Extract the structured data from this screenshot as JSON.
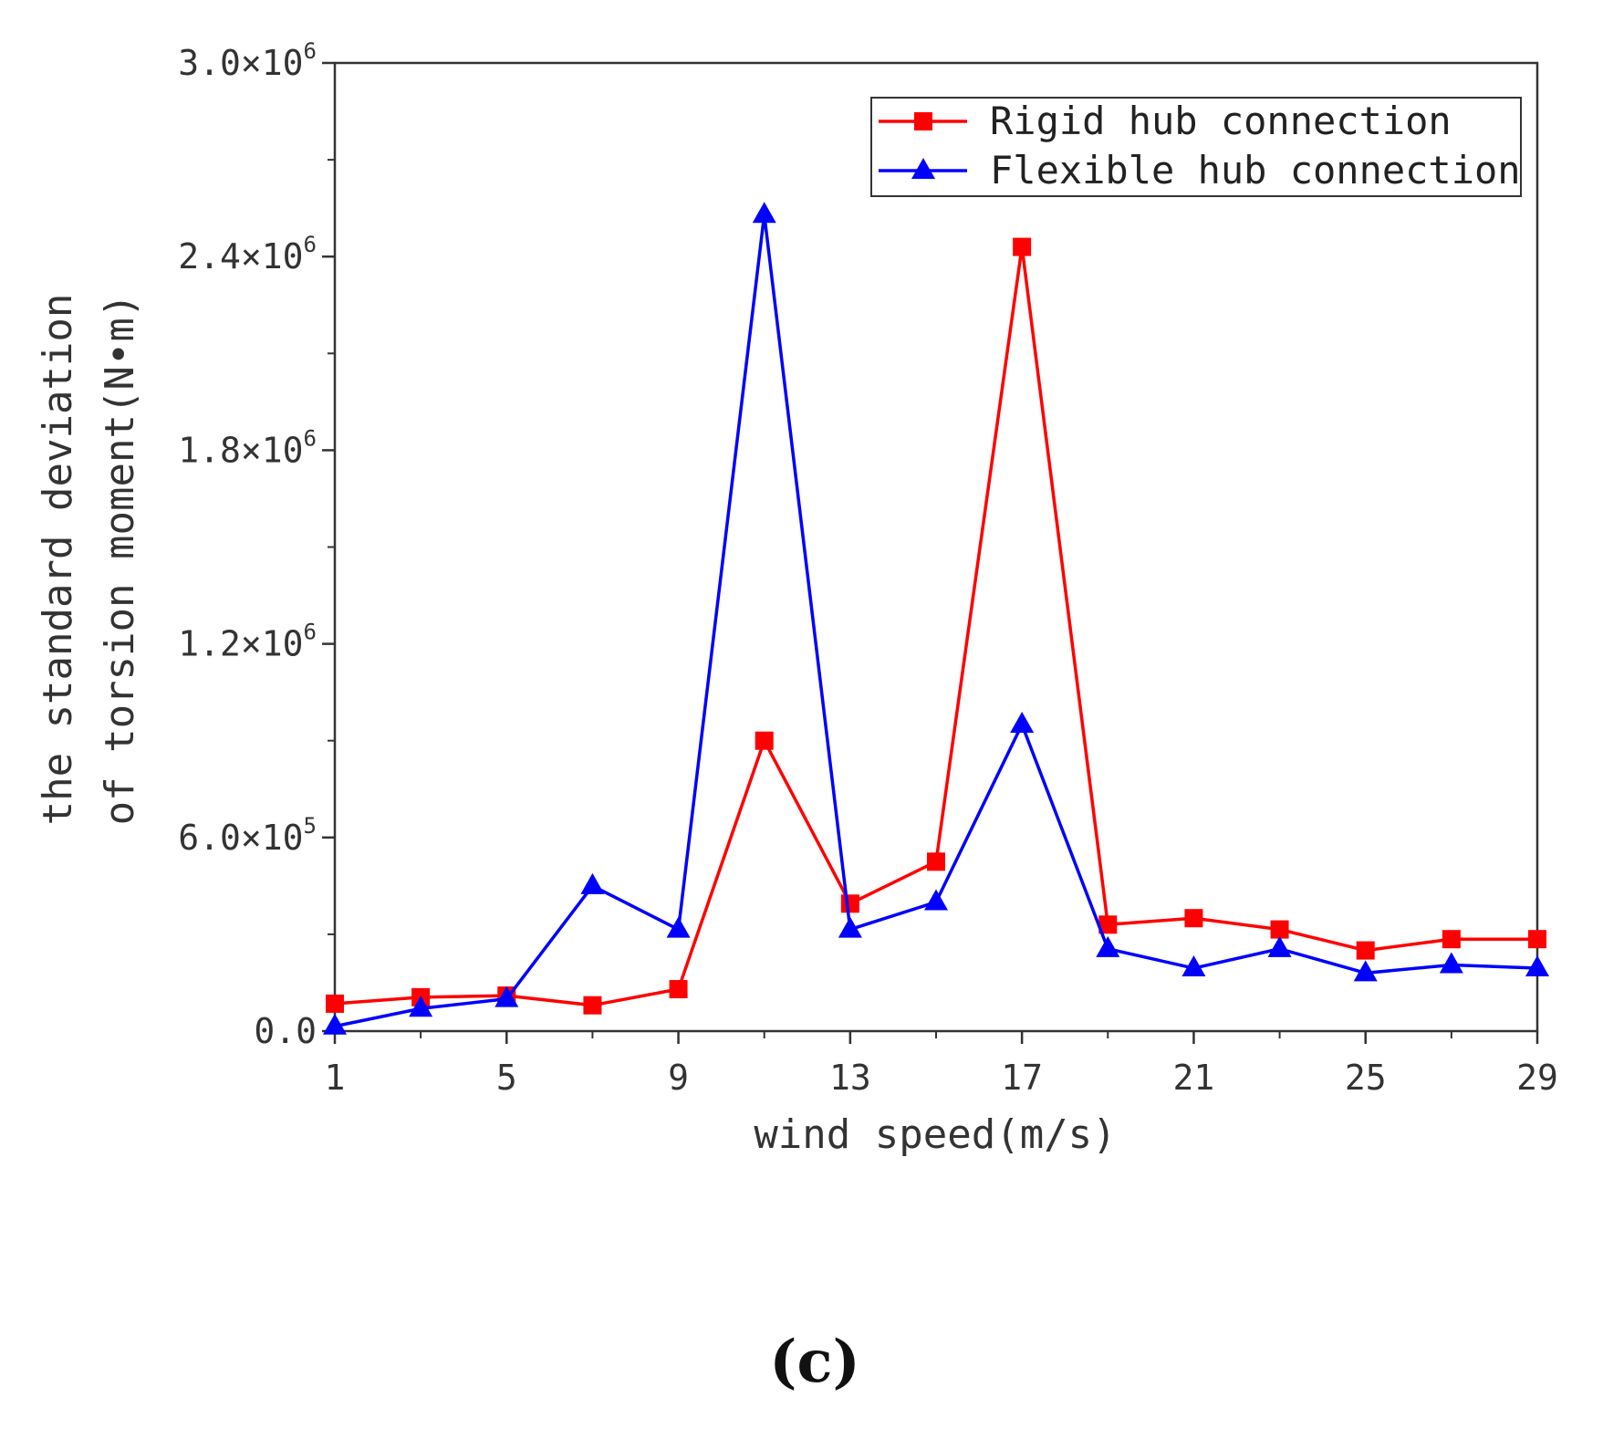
{
  "chart_data": {
    "type": "line",
    "title": "",
    "xlabel": "wind speed(m/s)",
    "ylabel_lines": [
      "the standard deviation",
      "of torsion moment(N•m)"
    ],
    "x": [
      1,
      3,
      5,
      7,
      9,
      11,
      13,
      15,
      17,
      19,
      21,
      23,
      25,
      27,
      29
    ],
    "xlim": [
      1,
      29
    ],
    "xticks": [
      1,
      5,
      9,
      13,
      17,
      21,
      25,
      29
    ],
    "xtick_labels": [
      "1",
      "5",
      "9",
      "13",
      "17",
      "21",
      "25",
      "29"
    ],
    "ylim": [
      0,
      3000000
    ],
    "yticks": [
      0,
      600000,
      1200000,
      1800000,
      2400000,
      3000000
    ],
    "ytick_labels": [
      {
        "mantissa": "0.0",
        "exponent": ""
      },
      {
        "mantissa": "6.0×10",
        "exponent": "5"
      },
      {
        "mantissa": "1.2×10",
        "exponent": "6"
      },
      {
        "mantissa": "1.8×10",
        "exponent": "6"
      },
      {
        "mantissa": "2.4×10",
        "exponent": "6"
      },
      {
        "mantissa": "3.0×10",
        "exponent": "6"
      }
    ],
    "legend_position": "top-right",
    "series": [
      {
        "name": "Rigid hub connection",
        "color": "#ff0000",
        "marker": "square",
        "values": [
          85000,
          105000,
          110000,
          80000,
          130000,
          900000,
          395000,
          525000,
          2430000,
          330000,
          350000,
          315000,
          250000,
          285000,
          285000
        ]
      },
      {
        "name": "Flexible hub connection",
        "color": "#0000ff",
        "marker": "triangle",
        "values": [
          15000,
          70000,
          100000,
          450000,
          315000,
          2530000,
          315000,
          400000,
          950000,
          255000,
          195000,
          255000,
          180000,
          205000,
          195000
        ]
      }
    ]
  },
  "panel_label": "(c)"
}
